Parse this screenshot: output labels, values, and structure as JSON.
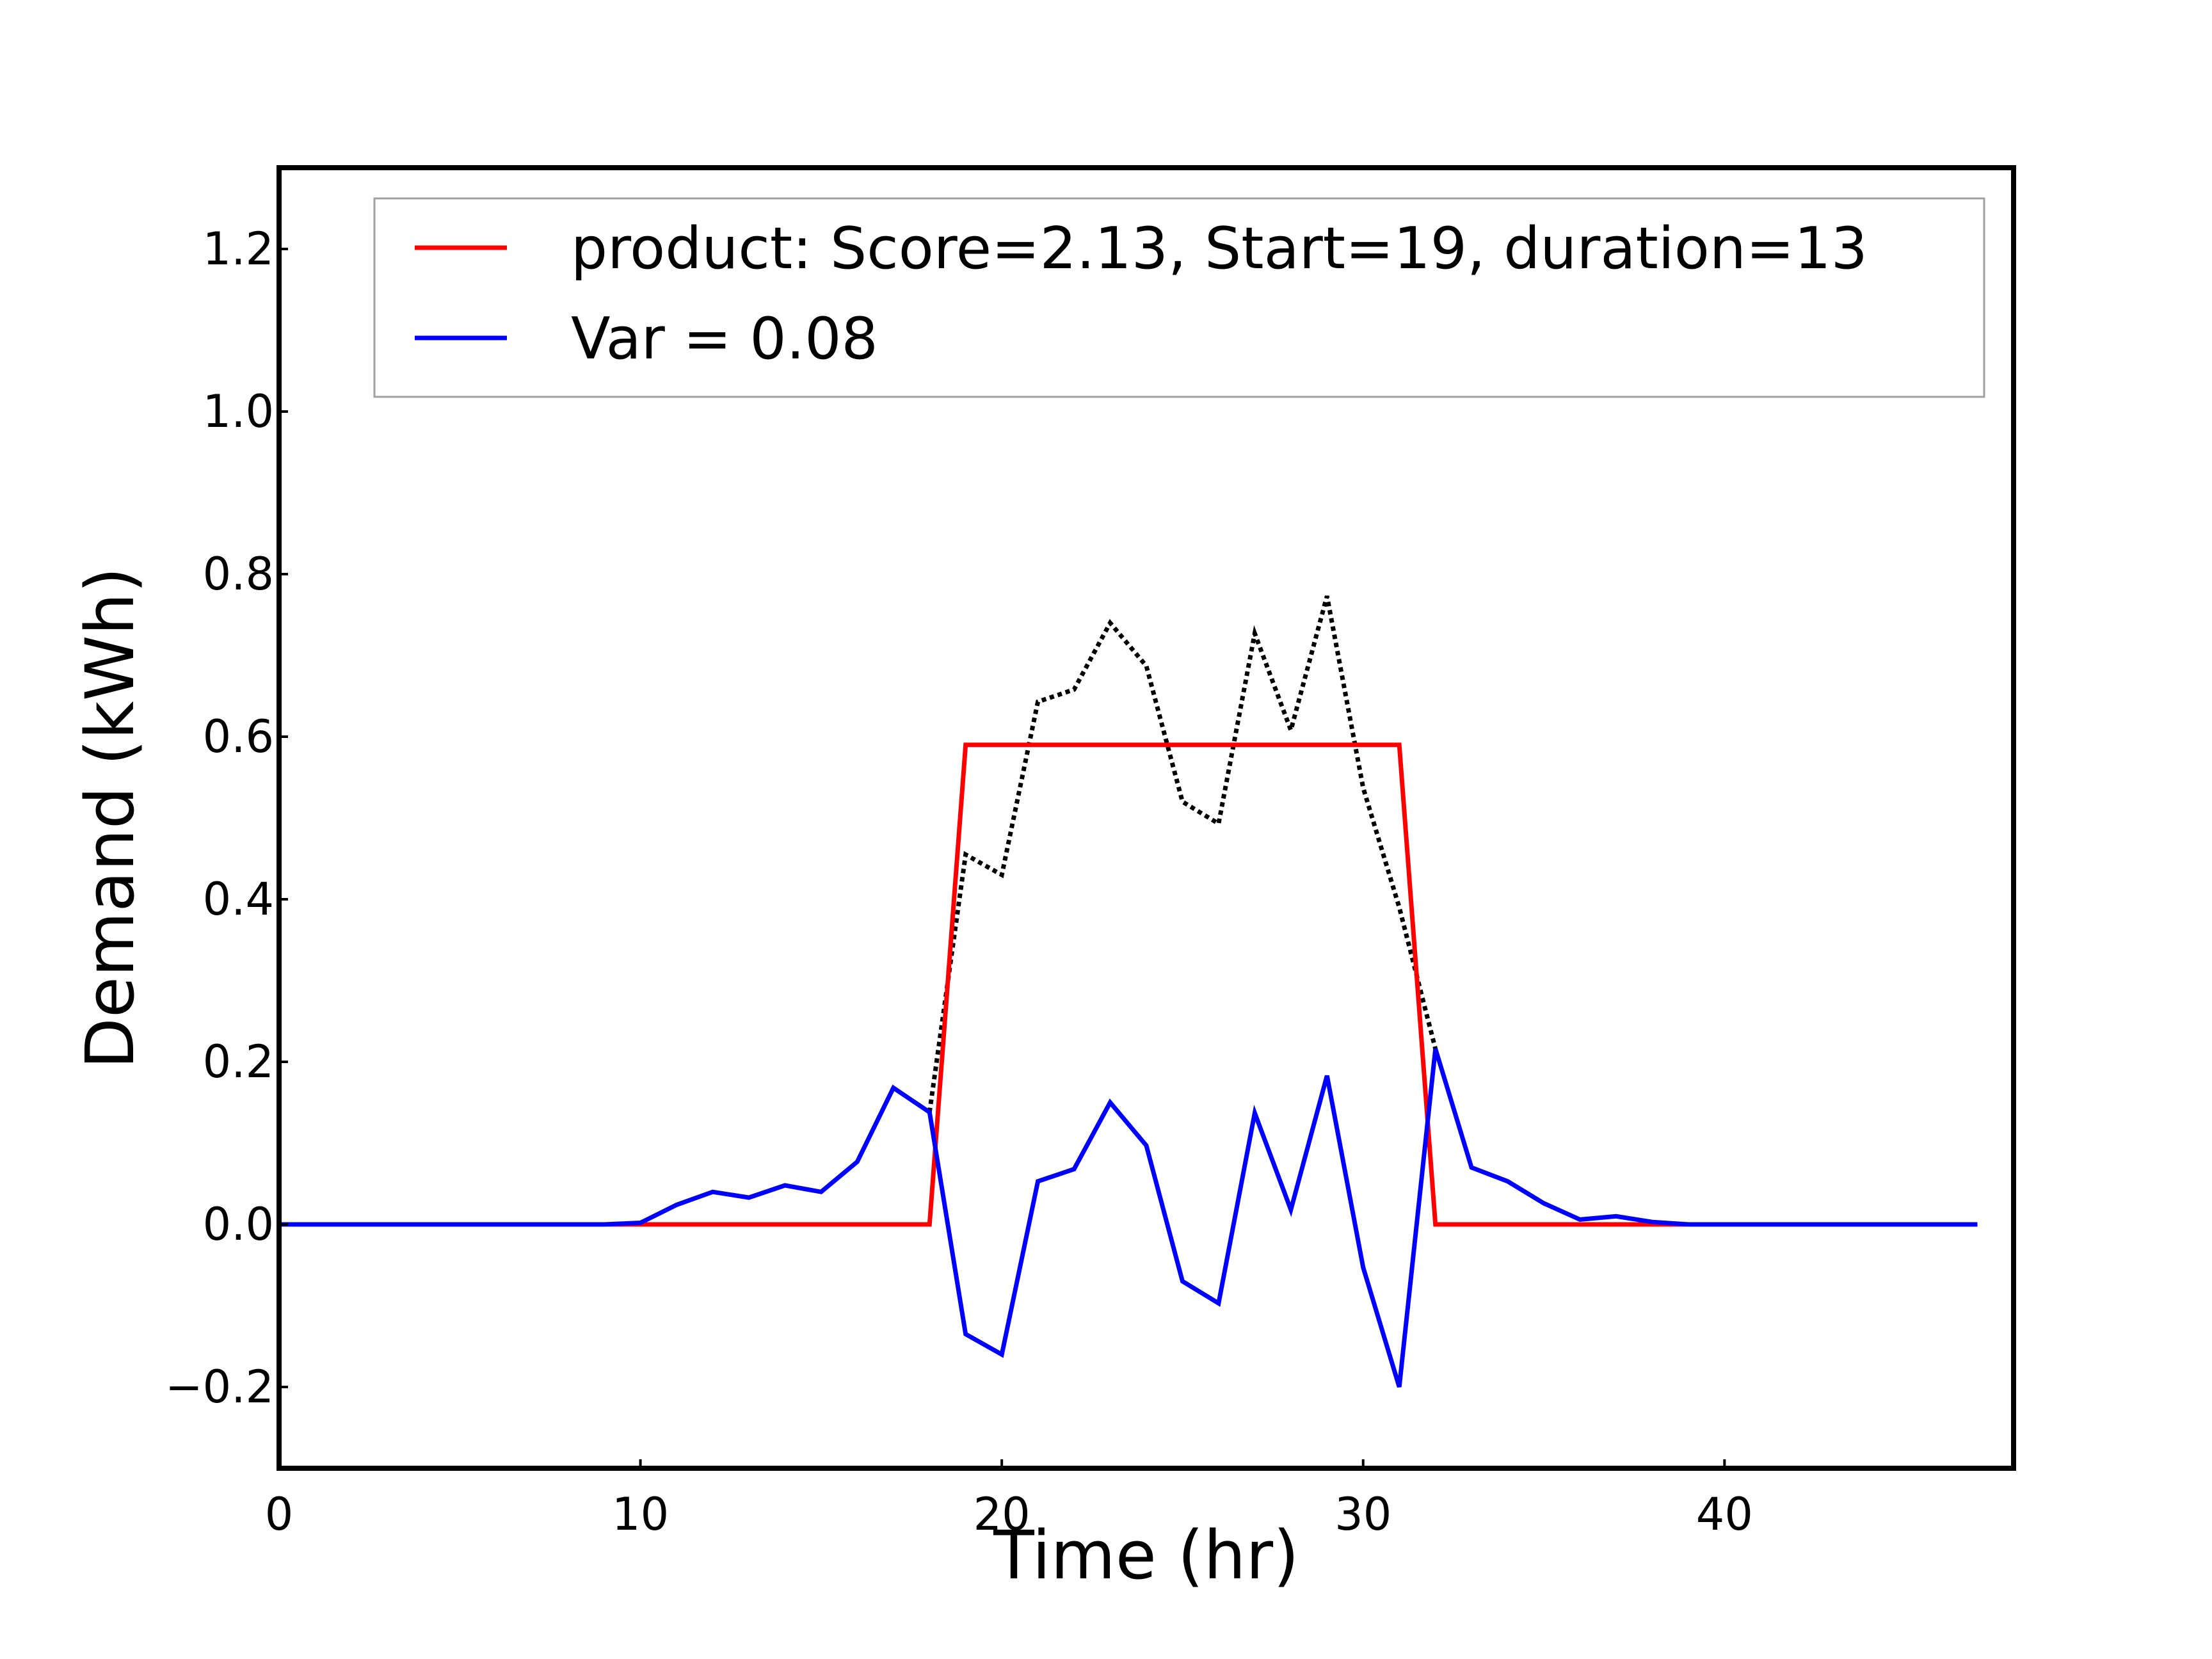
{
  "chart_data": {
    "type": "line",
    "title": "",
    "xlabel": "Time (hr)",
    "ylabel": "Demand (kWh)",
    "xlim": [
      0,
      48
    ],
    "ylim": [
      -0.3,
      1.3
    ],
    "xticks": [
      0,
      10,
      20,
      30,
      40
    ],
    "xtick_labels": [
      "0",
      "10",
      "20",
      "30",
      "40"
    ],
    "yticks": [
      -0.2,
      0.0,
      0.2,
      0.4,
      0.6,
      0.8,
      1.0,
      1.2
    ],
    "ytick_labels": [
      "−0.2",
      "0.0",
      "0.2",
      "0.4",
      "0.6",
      "0.8",
      "1.0",
      "1.2"
    ],
    "grid": false,
    "legend_position": "top-right",
    "series": [
      {
        "name": "product: Score=2.13, Start=19, duration=13",
        "color": "#ff0000",
        "style": "solid",
        "x": [
          0,
          18,
          19,
          31,
          32,
          47
        ],
        "y": [
          0.0,
          0.0,
          0.59,
          0.59,
          0.0,
          0.0
        ]
      },
      {
        "name": "Var = 0.08",
        "color": "#0000ff",
        "style": "solid",
        "x": [
          0,
          1,
          2,
          3,
          4,
          5,
          6,
          7,
          8,
          9,
          10,
          11,
          12,
          13,
          14,
          15,
          16,
          17,
          18,
          19,
          20,
          21,
          22,
          23,
          24,
          25,
          26,
          27,
          28,
          29,
          30,
          31,
          32,
          33,
          34,
          35,
          36,
          37,
          38,
          39,
          40,
          41,
          42,
          43,
          44,
          45,
          46,
          47
        ],
        "y": [
          0,
          0,
          0,
          0,
          0,
          0,
          0,
          0,
          0,
          0,
          0.002,
          0.024,
          0.04,
          0.033,
          0.048,
          0.04,
          0.077,
          0.168,
          0.138,
          -0.135,
          -0.16,
          0.053,
          0.068,
          0.15,
          0.097,
          -0.07,
          -0.097,
          0.137,
          0.018,
          0.183,
          -0.053,
          -0.2,
          0.216,
          0.07,
          0.053,
          0.026,
          0.006,
          0.01,
          0.003,
          0,
          0,
          0,
          0,
          0,
          0,
          0,
          0,
          0
        ]
      },
      {
        "color": "#000000",
        "style": "dotted",
        "x": [
          18,
          19,
          20,
          21,
          22,
          23,
          24,
          25,
          26,
          27,
          28,
          29,
          30,
          31,
          32
        ],
        "y": [
          0.138,
          0.455,
          0.43,
          0.643,
          0.658,
          0.74,
          0.687,
          0.52,
          0.493,
          0.727,
          0.608,
          0.773,
          0.537,
          0.39,
          0.216
        ]
      }
    ]
  }
}
